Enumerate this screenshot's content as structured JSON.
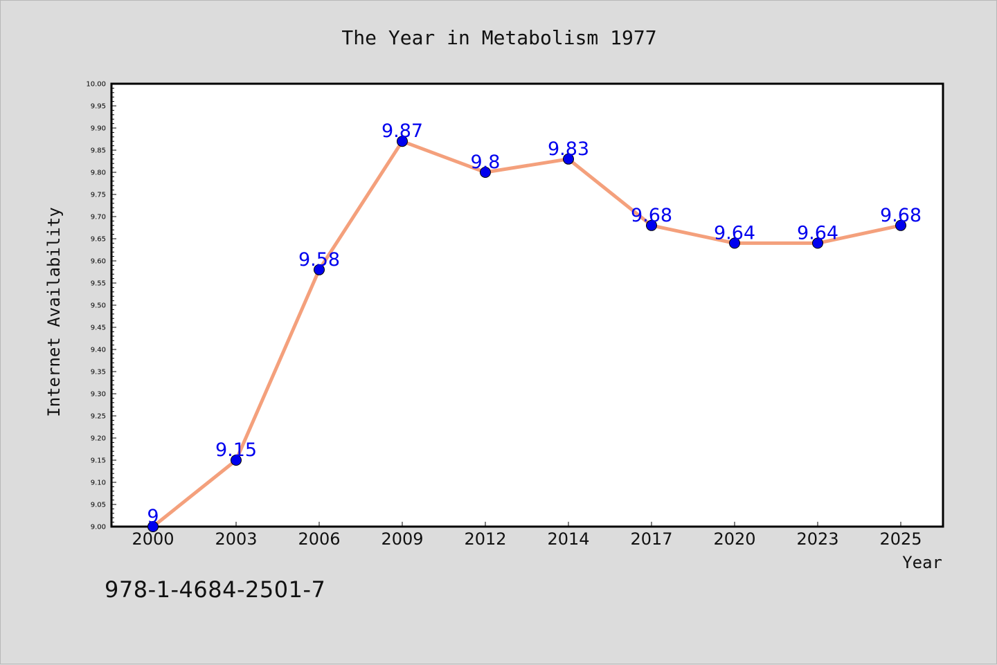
{
  "chart_data": {
    "type": "line",
    "title": "The Year in Metabolism 1977",
    "xlabel": "Year",
    "ylabel": "Internet Availability",
    "categories": [
      "2000",
      "2003",
      "2006",
      "2009",
      "2012",
      "2014",
      "2017",
      "2020",
      "2023",
      "2025"
    ],
    "series": [
      {
        "values": [
          9.0,
          9.15,
          9.58,
          9.87,
          9.8,
          9.83,
          9.68,
          9.64,
          9.64,
          9.68
        ],
        "data_labels": [
          "9",
          "9.15",
          "9.58",
          "9.87",
          "9.8",
          "9.83",
          "9.68",
          "9.64",
          "9.64",
          "9.68"
        ],
        "line_color": "#f4a07c",
        "marker_color": "#0000ee",
        "label_color": "#0000ee"
      }
    ],
    "ylim": [
      9.0,
      10.0
    ],
    "y_major_step": 0.05,
    "y_ticks": [
      "9.00",
      "9.05",
      "9.10",
      "9.15",
      "9.20",
      "9.25",
      "9.30",
      "9.35",
      "9.40",
      "9.45",
      "9.50",
      "9.55",
      "9.60",
      "9.65",
      "9.70",
      "9.75",
      "9.80",
      "9.85",
      "9.90",
      "9.95",
      "10.00"
    ],
    "grid": false,
    "legend": "none"
  },
  "footer_code": "978-1-4684-2501-7",
  "colors": {
    "background": "#dcdcdc",
    "plot_background": "#ffffff",
    "axis": "#000000"
  }
}
